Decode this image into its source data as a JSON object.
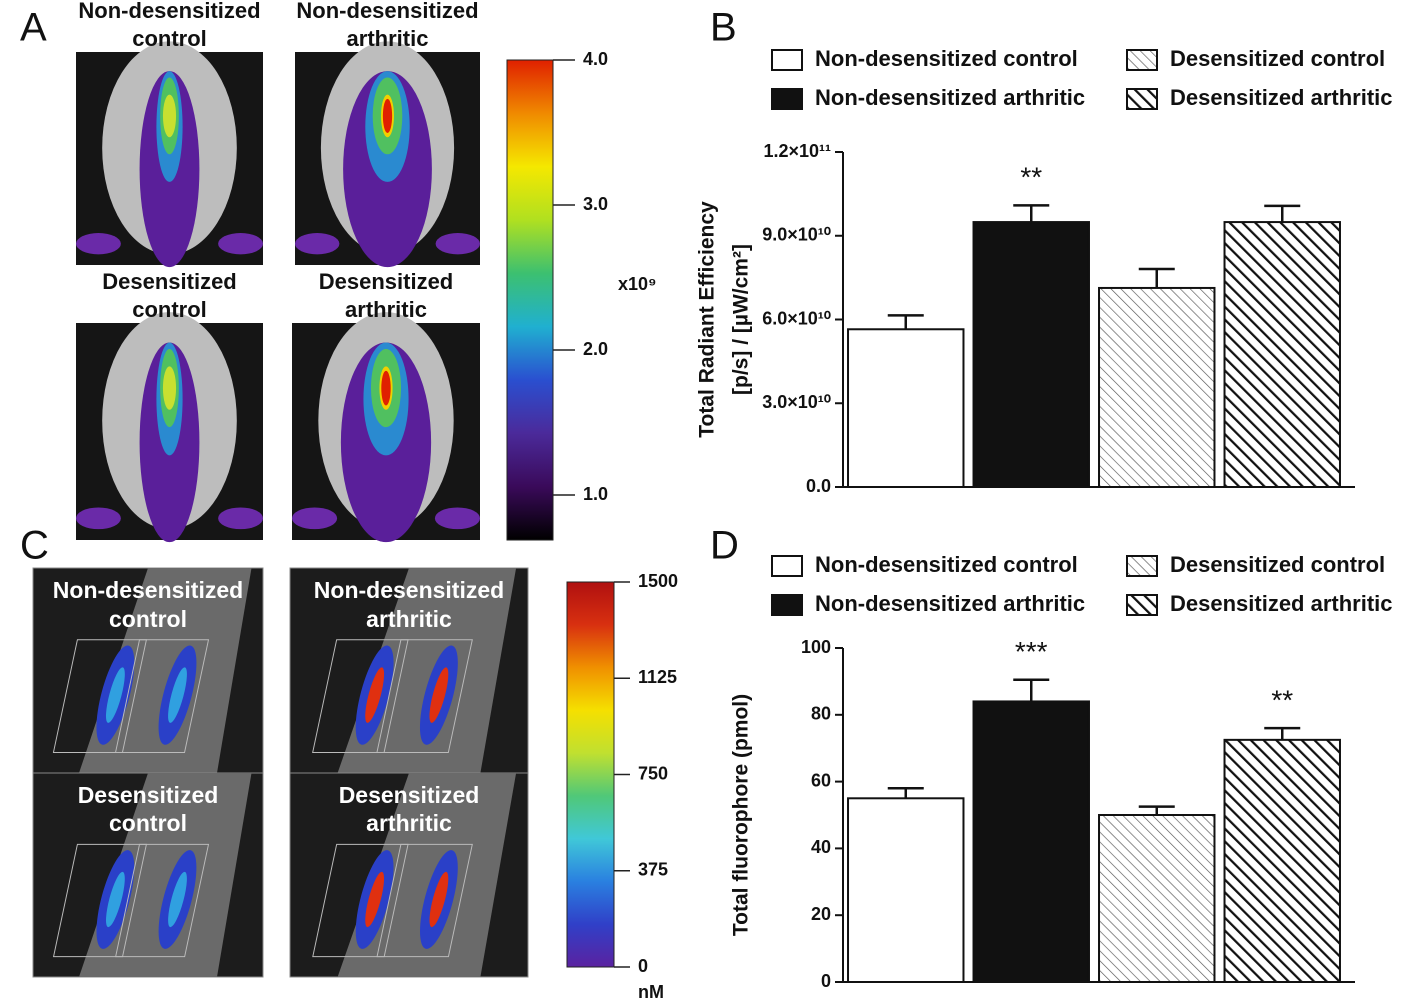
{
  "panel_a": {
    "letter": "A",
    "images": [
      {
        "label": [
          "Non-desensitized",
          "control"
        ],
        "hot": false
      },
      {
        "label": [
          "Non-desensitized",
          "arthritic"
        ],
        "hot": true
      },
      {
        "label": [
          "Desensitized",
          "control"
        ],
        "hot": false
      },
      {
        "label": [
          "Desensitized",
          "arthritic"
        ],
        "hot": true
      }
    ],
    "colorbar": {
      "ylim": [
        0.69,
        4.0
      ],
      "ticks": [
        {
          "value": 4,
          "label": "4.0"
        },
        {
          "value": 3,
          "label": "3.0"
        },
        {
          "value": 2,
          "label": "2.0"
        },
        {
          "value": 1,
          "label": "1.0"
        }
      ],
      "unit": "x10⁹",
      "colors": [
        "#000000",
        "#3a0a5a",
        "#4b2a9a",
        "#2a4fd0",
        "#20b0d0",
        "#3cc070",
        "#b0e020",
        "#f5e800",
        "#f08a00",
        "#e02000"
      ]
    }
  },
  "panel_c": {
    "letter": "C",
    "images": [
      {
        "label": [
          "Non-desensitized",
          "control"
        ],
        "hot": false
      },
      {
        "label": [
          "Non-desensitized",
          "arthritic"
        ],
        "hot": true
      },
      {
        "label": [
          "Desensitized",
          "control"
        ],
        "hot": false
      },
      {
        "label": [
          "Desensitized",
          "arthritic"
        ],
        "hot": true
      }
    ],
    "colorbar": {
      "ylim": [
        0,
        1500
      ],
      "ticks": [
        0,
        375,
        750,
        1125,
        1500
      ],
      "unit": "nM",
      "colors": [
        "#5a22a0",
        "#3040c8",
        "#2a80e0",
        "#40c8d8",
        "#50c878",
        "#c0e030",
        "#f5e000",
        "#f09000",
        "#d83010",
        "#b01010"
      ]
    }
  },
  "chart_data": [
    {
      "type": "bar",
      "letter": "B",
      "ylabel": [
        "Total Radiant Efficiency",
        "[p/s] / [µW/cm²]"
      ],
      "ylim": [
        0,
        120000000000
      ],
      "yticks": [
        {
          "value": 0,
          "label": "0.0"
        },
        {
          "value": 30000000000,
          "label": "3.0×10¹⁰"
        },
        {
          "value": 60000000000,
          "label": "6.0×10¹⁰"
        },
        {
          "value": 90000000000,
          "label": "9.0×10¹⁰"
        },
        {
          "value": 120000000000,
          "label": "1.2×10¹¹"
        }
      ],
      "series": [
        {
          "name": "Non-desensitized control",
          "color": "#ffffff",
          "values": [
            56500000000
          ],
          "errors": [
            5000000000
          ]
        },
        {
          "name": "Non-desensitized arthritic",
          "color": "#111111",
          "values": [
            94900000000
          ],
          "errors": [
            6000000000
          ],
          "annotation": "**"
        },
        {
          "name": "Desensitized control",
          "color": "#ffffff",
          "pattern": "fine-hatch",
          "values": [
            71300000000
          ],
          "errors": [
            6800000000
          ]
        },
        {
          "name": "Desensitized arthritic",
          "color": "#ffffff",
          "pattern": "bold-hatch",
          "values": [
            94900000000
          ],
          "errors": [
            5800000000
          ]
        }
      ]
    },
    {
      "type": "bar",
      "letter": "D",
      "ylabel": [
        "Total fluorophore (pmol)"
      ],
      "ylim": [
        0,
        100
      ],
      "yticks": [
        0,
        20,
        40,
        60,
        80,
        100
      ],
      "series": [
        {
          "name": "Non-desensitized control",
          "color": "#ffffff",
          "values": [
            55
          ],
          "errors": [
            3
          ]
        },
        {
          "name": "Non-desensitized arthritic",
          "color": "#111111",
          "values": [
            84
          ],
          "errors": [
            6.5
          ],
          "annotation": "***"
        },
        {
          "name": "Desensitized control",
          "color": "#ffffff",
          "pattern": "fine-hatch",
          "values": [
            50
          ],
          "errors": [
            2.5
          ]
        },
        {
          "name": "Desensitized arthritic",
          "color": "#ffffff",
          "pattern": "bold-hatch",
          "values": [
            72.5
          ],
          "errors": [
            3.5
          ],
          "annotation": "**"
        }
      ]
    }
  ]
}
